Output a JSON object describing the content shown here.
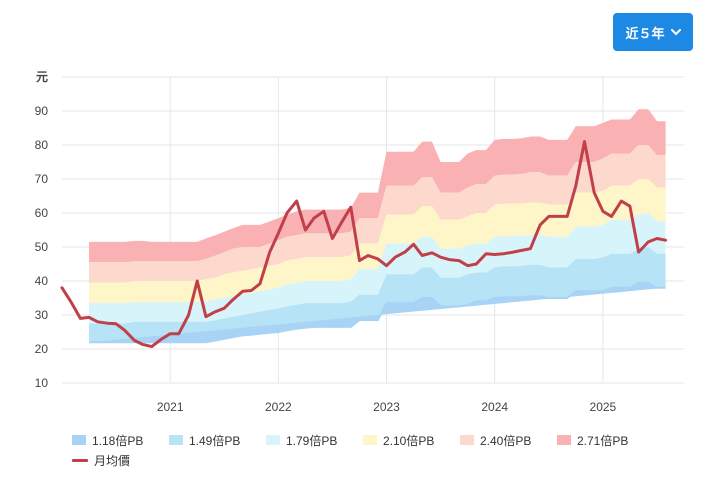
{
  "controls": {
    "period_label": "近５年",
    "chevron_icon": "chevron-down-icon"
  },
  "chart_data": {
    "type": "area",
    "ylabel": "元",
    "ylim": [
      10,
      100
    ],
    "yticks": [
      10,
      20,
      30,
      40,
      50,
      60,
      70,
      80,
      90
    ],
    "xlim": [
      2020.0,
      2025.75
    ],
    "xticks": [
      {
        "value": 2021.0,
        "label": "2021"
      },
      {
        "value": 2022.0,
        "label": "2022"
      },
      {
        "value": 2023.0,
        "label": "2023"
      },
      {
        "value": 2024.0,
        "label": "2024"
      },
      {
        "value": 2025.0,
        "label": "2025"
      }
    ],
    "band_x": [
      2020.25,
      2020.33,
      2020.42,
      2020.5,
      2020.58,
      2020.67,
      2020.75,
      2020.83,
      2020.92,
      2021.0,
      2021.08,
      2021.17,
      2021.25,
      2021.33,
      2021.42,
      2021.5,
      2021.58,
      2021.67,
      2021.75,
      2021.83,
      2021.92,
      2022.0,
      2022.08,
      2022.17,
      2022.25,
      2022.33,
      2022.42,
      2022.5,
      2022.58,
      2022.67,
      2022.75,
      2022.83,
      2022.92,
      2023.0,
      2023.08,
      2023.17,
      2023.25,
      2023.33,
      2023.42,
      2023.5,
      2023.58,
      2023.67,
      2023.75,
      2023.83,
      2023.92,
      2024.0,
      2024.08,
      2024.17,
      2024.25,
      2024.33,
      2024.42,
      2024.5,
      2024.58,
      2024.67,
      2024.75,
      2024.83,
      2024.92,
      2025.0,
      2025.08,
      2025.17,
      2025.25,
      2025.33,
      2025.42,
      2025.5,
      2025.58
    ],
    "bands": [
      {
        "name": "1.18倍PB",
        "color": "#a9d3f5",
        "values": [
          22.0,
          22.0,
          22.0,
          22.0,
          22.0,
          22.0,
          22.0,
          22.0,
          22.0,
          22.0,
          22.0,
          22.0,
          22.0,
          22.0,
          22.5,
          23.0,
          23.5,
          24.0,
          24.2,
          24.5,
          24.8,
          25.0,
          25.5,
          26.0,
          26.3,
          26.5,
          26.5,
          26.5,
          26.5,
          26.5,
          28.5,
          28.5,
          28.5,
          33.5,
          33.5,
          33.5,
          33.5,
          35.0,
          35.0,
          32.5,
          32.5,
          32.5,
          33.0,
          34.0,
          34.0,
          35.0,
          35.2,
          35.2,
          35.3,
          35.5,
          35.5,
          35.0,
          35.0,
          35.0,
          37.0,
          37.0,
          37.0,
          37.0,
          38.0,
          38.0,
          38.0,
          39.5,
          39.5,
          38.0,
          38.0
        ]
      },
      {
        "name": "1.49倍PB",
        "color": "#b6e3f6",
        "values": [
          27.5,
          27.5,
          27.5,
          27.5,
          27.5,
          28.0,
          28.0,
          28.0,
          28.0,
          28.0,
          28.0,
          28.0,
          28.0,
          28.0,
          28.5,
          29.0,
          29.5,
          30.0,
          30.5,
          31.0,
          31.5,
          32.0,
          32.5,
          33.0,
          33.5,
          33.5,
          33.5,
          33.5,
          33.5,
          34.0,
          36.0,
          36.0,
          36.0,
          42.0,
          42.0,
          42.0,
          42.0,
          44.0,
          44.0,
          41.0,
          41.0,
          41.0,
          42.0,
          42.5,
          42.5,
          44.0,
          44.3,
          44.3,
          44.5,
          44.8,
          44.8,
          44.0,
          44.0,
          44.0,
          46.5,
          46.5,
          46.5,
          47.0,
          48.0,
          48.0,
          48.0,
          49.5,
          50.0,
          48.0,
          48.0
        ]
      },
      {
        "name": "1.79倍PB",
        "color": "#d8f4fb",
        "values": [
          33.5,
          33.5,
          33.5,
          33.5,
          33.5,
          33.8,
          33.8,
          33.8,
          33.8,
          33.8,
          33.8,
          33.8,
          33.8,
          34.0,
          34.5,
          35.0,
          35.5,
          36.0,
          36.5,
          37.0,
          37.5,
          38.0,
          39.0,
          39.5,
          40.0,
          40.0,
          40.0,
          40.0,
          40.0,
          40.5,
          43.5,
          43.5,
          43.5,
          51.0,
          51.0,
          51.0,
          51.0,
          53.0,
          53.0,
          49.5,
          49.5,
          49.5,
          50.5,
          51.0,
          51.0,
          53.0,
          53.2,
          53.2,
          53.3,
          53.5,
          53.5,
          53.0,
          53.0,
          53.0,
          56.0,
          56.0,
          56.0,
          56.5,
          58.0,
          58.0,
          58.0,
          59.5,
          60.0,
          57.5,
          57.5
        ]
      },
      {
        "name": "2.10倍PB",
        "color": "#fef5c8",
        "values": [
          39.5,
          39.5,
          39.5,
          39.5,
          39.5,
          40.0,
          40.0,
          40.0,
          40.0,
          40.0,
          40.0,
          40.0,
          40.0,
          40.5,
          41.0,
          42.0,
          42.5,
          43.0,
          43.5,
          44.0,
          44.5,
          45.0,
          46.0,
          46.5,
          47.0,
          47.0,
          47.0,
          47.0,
          47.0,
          47.5,
          51.0,
          51.0,
          51.0,
          59.5,
          59.5,
          59.5,
          59.5,
          62.0,
          62.0,
          58.0,
          58.0,
          58.0,
          59.0,
          60.0,
          60.0,
          62.5,
          62.7,
          62.7,
          62.8,
          63.0,
          63.0,
          62.5,
          62.5,
          62.5,
          66.0,
          66.0,
          66.0,
          66.5,
          68.0,
          68.0,
          68.0,
          70.0,
          70.0,
          67.5,
          67.5
        ]
      },
      {
        "name": "2.40倍PB",
        "color": "#fdd8cc",
        "values": [
          45.5,
          45.5,
          45.5,
          45.5,
          45.5,
          45.8,
          45.8,
          45.8,
          45.8,
          45.8,
          45.8,
          45.8,
          45.8,
          46.5,
          47.5,
          48.5,
          49.5,
          50.0,
          50.0,
          50.0,
          51.0,
          52.0,
          53.0,
          53.5,
          54.0,
          54.0,
          54.0,
          54.0,
          54.0,
          54.5,
          58.5,
          58.5,
          58.5,
          68.0,
          68.0,
          68.0,
          68.0,
          70.5,
          70.5,
          66.0,
          66.0,
          66.0,
          67.5,
          68.5,
          68.5,
          71.0,
          71.3,
          71.3,
          71.5,
          72.0,
          72.0,
          71.0,
          71.0,
          71.0,
          75.0,
          75.0,
          75.0,
          76.0,
          77.5,
          77.5,
          77.5,
          80.0,
          80.0,
          77.0,
          77.0
        ]
      },
      {
        "name": "2.71倍PB",
        "color": "#f9b1b4",
        "values": [
          51.5,
          51.5,
          51.5,
          51.5,
          51.5,
          51.8,
          51.8,
          51.5,
          51.5,
          51.5,
          51.5,
          51.5,
          51.5,
          52.5,
          53.5,
          54.5,
          55.5,
          56.5,
          56.5,
          56.5,
          57.5,
          58.5,
          59.5,
          60.5,
          61.0,
          61.0,
          61.0,
          61.0,
          61.0,
          61.5,
          66.0,
          66.0,
          66.0,
          78.0,
          78.0,
          78.0,
          78.0,
          81.0,
          81.0,
          75.0,
          75.0,
          75.0,
          77.5,
          78.5,
          78.5,
          81.5,
          81.8,
          81.8,
          82.0,
          82.5,
          82.5,
          81.5,
          81.5,
          81.5,
          85.5,
          85.5,
          85.5,
          86.5,
          87.5,
          87.5,
          87.5,
          90.5,
          90.5,
          87.0,
          87.0
        ]
      }
    ],
    "price_series": {
      "name": "月均價",
      "color": "#c0404a",
      "x": [
        2020.0,
        2020.08,
        2020.17,
        2020.25,
        2020.33,
        2020.42,
        2020.5,
        2020.58,
        2020.67,
        2020.75,
        2020.83,
        2020.92,
        2021.0,
        2021.08,
        2021.17,
        2021.25,
        2021.33,
        2021.42,
        2021.5,
        2021.58,
        2021.67,
        2021.75,
        2021.83,
        2021.92,
        2022.0,
        2022.08,
        2022.17,
        2022.25,
        2022.33,
        2022.42,
        2022.5,
        2022.58,
        2022.67,
        2022.75,
        2022.83,
        2022.92,
        2023.0,
        2023.08,
        2023.17,
        2023.25,
        2023.33,
        2023.42,
        2023.5,
        2023.58,
        2023.67,
        2023.75,
        2023.83,
        2023.92,
        2024.0,
        2024.08,
        2024.17,
        2024.25,
        2024.33,
        2024.42,
        2024.5,
        2024.58,
        2024.67,
        2024.75,
        2024.83,
        2024.92,
        2025.0,
        2025.08,
        2025.17,
        2025.25,
        2025.33,
        2025.42,
        2025.5,
        2025.58
      ],
      "values": [
        38.0,
        34.0,
        29.0,
        29.3,
        28.0,
        27.6,
        27.4,
        25.5,
        22.5,
        21.3,
        20.7,
        22.9,
        24.5,
        24.5,
        30.0,
        40.0,
        29.5,
        31.0,
        32.0,
        34.5,
        37.0,
        37.2,
        39.2,
        48.5,
        54.0,
        60.0,
        63.5,
        55.0,
        58.5,
        60.5,
        52.5,
        57.0,
        61.7,
        46.0,
        47.5,
        46.5,
        44.5,
        47.0,
        48.5,
        50.8,
        47.5,
        48.3,
        47.0,
        46.3,
        46.0,
        44.5,
        45.0,
        48.0,
        47.8,
        48.0,
        48.5,
        49.0,
        49.5,
        56.5,
        59.0,
        59.0,
        59.0,
        68.0,
        81.0,
        66.0,
        60.5,
        59.0,
        63.5,
        62.0,
        48.5,
        51.5,
        52.5,
        52.0
      ]
    }
  }
}
